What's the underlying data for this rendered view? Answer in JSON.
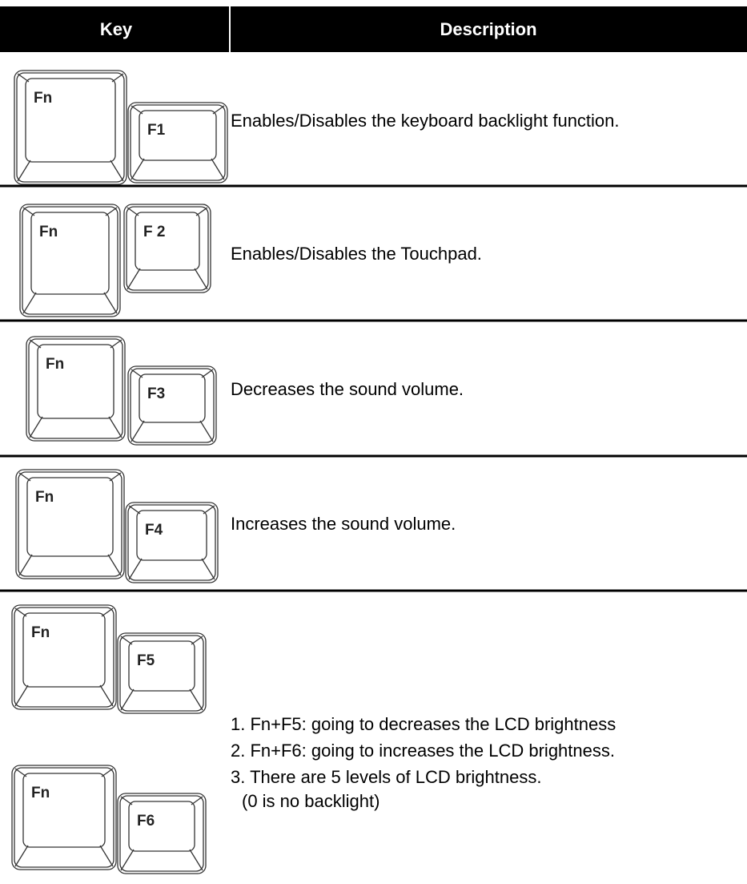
{
  "table": {
    "header": [
      "Key",
      "Description"
    ],
    "rows": [
      {
        "keys": [
          "Fn",
          "F1"
        ],
        "description": [
          "Enables/Disables the keyboard backlight function."
        ]
      },
      {
        "keys": [
          "Fn",
          "F 2"
        ],
        "description": [
          "Enables/Disables the Touchpad."
        ]
      },
      {
        "keys": [
          "Fn",
          "F3"
        ],
        "description": [
          "Decreases the sound volume."
        ]
      },
      {
        "keys": [
          "Fn",
          "F4"
        ],
        "description": [
          "Increases the sound volume."
        ]
      },
      {
        "keys": [
          "Fn",
          "F5",
          "Fn",
          "F6"
        ],
        "description": [
          "1. Fn+F5: going to decreases the LCD brightness",
          "2. Fn+F6: going to increases the LCD brightness.",
          "3. There are 5 levels of LCD brightness.",
          "(0 is no backlight)"
        ]
      }
    ]
  }
}
